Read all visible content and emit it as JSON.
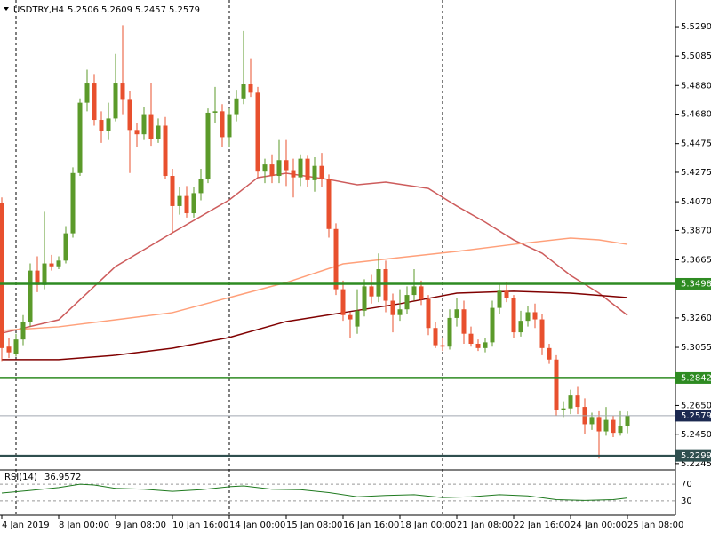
{
  "chart_data": {
    "type": "candlestick",
    "symbol": "USDTRY,H4",
    "header_values": [
      5.2506,
      5.2609,
      5.2457,
      5.2579
    ],
    "up_color": "#5b9a2a",
    "down_color": "#e8502e",
    "ylim": [
      5.2207,
      5.5476
    ],
    "yticks": [
      {
        "value": 5.529,
        "label": "5.5290"
      },
      5.5085,
      {
        "value": 5.488,
        "label": "5.4880"
      },
      {
        "value": 5.468,
        "label": "5.4680"
      },
      5.4475,
      5.4275,
      {
        "value": 5.407,
        "label": "5.4070"
      },
      {
        "value": 5.387,
        "label": "5.3870"
      },
      5.3665,
      {
        "value": 5.326,
        "label": "5.3260"
      },
      5.3055,
      {
        "value": 5.265,
        "label": "5.2650"
      },
      {
        "value": 5.245,
        "label": "5.2450"
      },
      5.2245
    ],
    "categories": [
      "4 Jan 2019",
      null,
      null,
      null,
      null,
      null,
      null,
      null,
      "8 Jan 00:00",
      null,
      null,
      null,
      null,
      null,
      null,
      null,
      "9 Jan 08:00",
      null,
      null,
      null,
      null,
      null,
      null,
      null,
      "10 Jan 16:00",
      null,
      null,
      null,
      null,
      null,
      null,
      null,
      "14 Jan 00:00",
      null,
      null,
      null,
      null,
      null,
      null,
      null,
      "15 Jan 08:00",
      null,
      null,
      null,
      null,
      null,
      null,
      null,
      "16 Jan 16:00",
      null,
      null,
      null,
      null,
      null,
      null,
      null,
      "18 Jan 00:00",
      null,
      null,
      null,
      null,
      null,
      null,
      null,
      "21 Jan 08:00",
      null,
      null,
      null,
      null,
      null,
      null,
      null,
      "22 Jan 16:00",
      null,
      null,
      null,
      null,
      null,
      null,
      null,
      "24 Jan 00:00",
      null,
      null,
      null,
      null,
      null,
      null,
      null,
      "25 Jan 08:00"
    ],
    "candles": [
      [
        5.406,
        5.41,
        5.296,
        5.305
      ],
      [
        5.306,
        5.312,
        5.298,
        5.302
      ],
      [
        5.301,
        5.315,
        5.299,
        5.311
      ],
      [
        5.311,
        5.328,
        5.307,
        5.323
      ],
      [
        5.323,
        5.364,
        5.32,
        5.359
      ],
      [
        5.359,
        5.369,
        5.344,
        5.349
      ],
      [
        5.349,
        5.4,
        5.346,
        5.364
      ],
      [
        5.364,
        5.37,
        5.359,
        5.362
      ],
      [
        5.362,
        5.369,
        5.36,
        5.366
      ],
      [
        5.366,
        5.39,
        5.364,
        5.385
      ],
      [
        5.385,
        5.431,
        5.382,
        5.427
      ],
      [
        5.427,
        5.479,
        5.425,
        5.476
      ],
      [
        5.476,
        5.499,
        5.47,
        5.49
      ],
      [
        5.49,
        5.496,
        5.46,
        5.464
      ],
      [
        5.464,
        5.47,
        5.448,
        5.456
      ],
      [
        5.456,
        5.476,
        5.45,
        5.465
      ],
      [
        5.465,
        5.51,
        5.463,
        5.49
      ],
      [
        5.49,
        5.53,
        5.468,
        5.478
      ],
      [
        5.478,
        5.484,
        5.427,
        5.457
      ],
      [
        5.457,
        5.462,
        5.445,
        5.454
      ],
      [
        5.454,
        5.473,
        5.45,
        5.468
      ],
      [
        5.468,
        5.49,
        5.446,
        5.451
      ],
      [
        5.451,
        5.465,
        5.448,
        5.46
      ],
      [
        5.46,
        5.466,
        5.423,
        5.425
      ],
      [
        5.425,
        5.43,
        5.385,
        5.404
      ],
      [
        5.404,
        5.417,
        5.398,
        5.411
      ],
      [
        5.411,
        5.418,
        5.396,
        5.399
      ],
      [
        5.399,
        5.417,
        5.396,
        5.413
      ],
      [
        5.413,
        5.43,
        5.408,
        5.423
      ],
      [
        5.423,
        5.472,
        5.42,
        5.469
      ],
      [
        5.469,
        5.487,
        5.462,
        5.47
      ],
      [
        5.47,
        5.475,
        5.445,
        5.452
      ],
      [
        5.452,
        5.472,
        5.445,
        5.468
      ],
      [
        5.468,
        5.485,
        5.463,
        5.479
      ],
      [
        5.479,
        5.526,
        5.475,
        5.489
      ],
      [
        5.489,
        5.507,
        5.48,
        5.483
      ],
      [
        5.483,
        5.487,
        5.424,
        5.428
      ],
      [
        5.428,
        5.437,
        5.42,
        5.433
      ],
      [
        5.433,
        5.44,
        5.42,
        5.425
      ],
      [
        5.425,
        5.45,
        5.42,
        5.436
      ],
      [
        5.436,
        5.45,
        5.418,
        5.429
      ],
      [
        5.429,
        5.437,
        5.41,
        5.424
      ],
      [
        5.424,
        5.44,
        5.418,
        5.437
      ],
      [
        5.437,
        5.439,
        5.417,
        5.422
      ],
      [
        5.422,
        5.438,
        5.414,
        5.432
      ],
      [
        5.432,
        5.441,
        5.417,
        5.423
      ],
      [
        5.423,
        5.426,
        5.382,
        5.388
      ],
      [
        5.388,
        5.392,
        5.342,
        5.346
      ],
      [
        5.346,
        5.352,
        5.324,
        5.328
      ],
      [
        5.328,
        5.33,
        5.312,
        5.325
      ],
      [
        5.32,
        5.346,
        5.315,
        5.331
      ],
      [
        5.331,
        5.353,
        5.327,
        5.348
      ],
      [
        5.348,
        5.356,
        5.336,
        5.341
      ],
      [
        5.341,
        5.371,
        5.337,
        5.36
      ],
      [
        5.36,
        5.366,
        5.33,
        5.338
      ],
      [
        5.338,
        5.343,
        5.316,
        5.328
      ],
      [
        5.328,
        5.346,
        5.324,
        5.332
      ],
      [
        5.332,
        5.348,
        5.329,
        5.342
      ],
      [
        5.342,
        5.36,
        5.338,
        5.348
      ],
      [
        5.348,
        5.352,
        5.335,
        5.339
      ],
      [
        5.339,
        5.342,
        5.314,
        5.319
      ],
      [
        5.319,
        5.323,
        5.305,
        5.307
      ],
      [
        5.307,
        5.312,
        5.303,
        5.306
      ],
      [
        5.306,
        5.332,
        5.304,
        5.326
      ],
      [
        5.326,
        5.34,
        5.32,
        5.332
      ],
      [
        5.332,
        5.338,
        5.308,
        5.315
      ],
      [
        5.315,
        5.32,
        5.306,
        5.308
      ],
      [
        5.308,
        5.311,
        5.303,
        5.305
      ],
      [
        5.305,
        5.312,
        5.302,
        5.309
      ],
      [
        5.309,
        5.338,
        5.306,
        5.333
      ],
      [
        5.333,
        5.35,
        5.329,
        5.345
      ],
      [
        5.345,
        5.351,
        5.337,
        5.34
      ],
      [
        5.34,
        5.342,
        5.312,
        5.316
      ],
      [
        5.316,
        5.331,
        5.313,
        5.324
      ],
      [
        5.324,
        5.334,
        5.32,
        5.33
      ],
      [
        5.33,
        5.336,
        5.319,
        5.325
      ],
      [
        5.325,
        5.329,
        5.3,
        5.305
      ],
      [
        5.305,
        5.308,
        5.294,
        5.297
      ],
      [
        5.297,
        5.3,
        5.258,
        5.262
      ],
      [
        5.262,
        5.268,
        5.257,
        5.263
      ],
      [
        5.263,
        5.276,
        5.259,
        5.272
      ],
      [
        5.272,
        5.278,
        5.259,
        5.264
      ],
      [
        5.264,
        5.27,
        5.245,
        5.252
      ],
      [
        5.252,
        5.26,
        5.248,
        5.257
      ],
      [
        5.257,
        5.261,
        5.228,
        5.247
      ],
      [
        5.247,
        5.264,
        5.244,
        5.255
      ],
      [
        5.255,
        5.258,
        5.243,
        5.246
      ],
      [
        5.246,
        5.261,
        5.244,
        5.2506
      ],
      [
        5.2506,
        5.2609,
        5.2457,
        5.2579
      ]
    ],
    "series": [
      {
        "color": "#cd5c5c",
        "x": [
          0,
          8,
          16,
          24,
          32,
          36,
          40,
          46,
          50,
          54,
          60,
          64,
          68,
          72,
          76,
          80,
          84,
          88
        ],
        "values": [
          5.3154,
          5.3247,
          5.3619,
          5.3854,
          5.4083,
          5.4238,
          5.4269,
          5.4225,
          5.4188,
          5.4207,
          5.4163,
          5.404,
          5.3928,
          5.3804,
          5.3711,
          5.3557,
          5.3433,
          5.3278
        ]
      },
      {
        "color": "#ffa07a",
        "x": [
          0,
          8,
          16,
          24,
          32,
          40,
          48,
          56,
          64,
          72,
          80,
          84,
          88
        ],
        "values": [
          5.3173,
          5.3198,
          5.3247,
          5.3297,
          5.3402,
          5.3507,
          5.3637,
          5.3681,
          5.3724,
          5.3773,
          5.3817,
          5.3804,
          5.3773
        ]
      },
      {
        "color": "#800000",
        "x": [
          0,
          8,
          16,
          24,
          32,
          40,
          48,
          56,
          64,
          72,
          80,
          88
        ],
        "values": [
          5.2969,
          5.2969,
          5.3,
          5.3049,
          5.3124,
          5.3235,
          5.3297,
          5.3359,
          5.3433,
          5.3446,
          5.3433,
          5.3402
        ]
      }
    ],
    "levels": [
      {
        "value": 5.3498,
        "color": "#2e8b22",
        "box_color": "#2e8b22"
      },
      {
        "value": 5.2842,
        "color": "#2e8b22",
        "box_color": "#2e8b22"
      },
      {
        "value": 5.2299,
        "color": "#2f4f4f",
        "box_color": "#2f4f4f"
      },
      {
        "value": 5.2579,
        "color": "#a0a8b0",
        "box_color": "#1c2951"
      }
    ],
    "rsi": {
      "name": "RSI(14)",
      "color": "#1f7a1f",
      "ylim": [
        0,
        100
      ],
      "yticks": [
        30,
        70
      ],
      "x": [
        0,
        4,
        8,
        11,
        13,
        16,
        20,
        24,
        28,
        32,
        34,
        38,
        42,
        46,
        50,
        54,
        58,
        62,
        66,
        70,
        74,
        78,
        82,
        86,
        88
      ],
      "values": [
        49,
        55,
        62,
        70,
        68,
        60,
        58,
        53,
        57,
        64,
        66,
        58,
        57,
        50,
        40,
        43,
        45,
        38,
        40,
        45,
        42,
        33,
        31,
        33,
        36.9572
      ]
    }
  }
}
